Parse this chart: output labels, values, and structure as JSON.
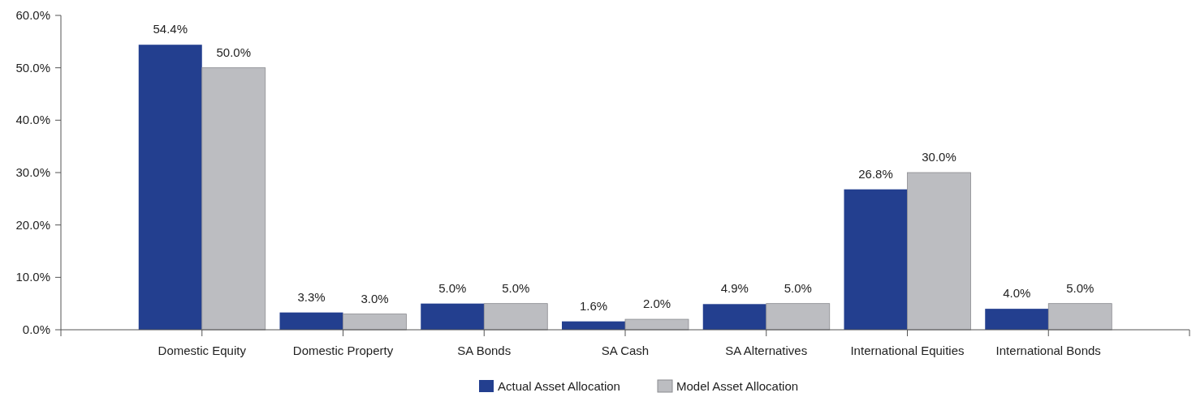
{
  "chart_data": {
    "type": "bar",
    "categories": [
      "Domestic Equity",
      "Domestic Property",
      "SA Bonds",
      "SA Cash",
      "SA Alternatives",
      "International Equities",
      "International Bonds"
    ],
    "series": [
      {
        "name": "Actual Asset Allocation",
        "color": "#233f8f",
        "values": [
          54.4,
          3.3,
          5.0,
          1.6,
          4.9,
          26.8,
          4.0
        ],
        "value_labels": [
          "54.4%",
          "3.3%",
          "5.0%",
          "1.6%",
          "4.9%",
          "26.8%",
          "4.0%"
        ]
      },
      {
        "name": "Model Asset Allocation",
        "color": "#bcbdc1",
        "values": [
          50.0,
          3.0,
          5.0,
          2.0,
          5.0,
          30.0,
          5.0
        ],
        "value_labels": [
          "50.0%",
          "3.0%",
          "5.0%",
          "2.0%",
          "5.0%",
          "30.0%",
          "5.0%"
        ]
      }
    ],
    "ylim": [
      0,
      60
    ],
    "yticks": [
      {
        "value": 0,
        "label": "0.0%"
      },
      {
        "value": 10,
        "label": "10.0%"
      },
      {
        "value": 20,
        "label": "20.0%"
      },
      {
        "value": 30,
        "label": "30.0%"
      },
      {
        "value": 40,
        "label": "40.0%"
      },
      {
        "value": 50,
        "label": "50.0%"
      },
      {
        "value": 60,
        "label": "60.0%"
      }
    ],
    "grid": false,
    "legend": "bottom"
  }
}
